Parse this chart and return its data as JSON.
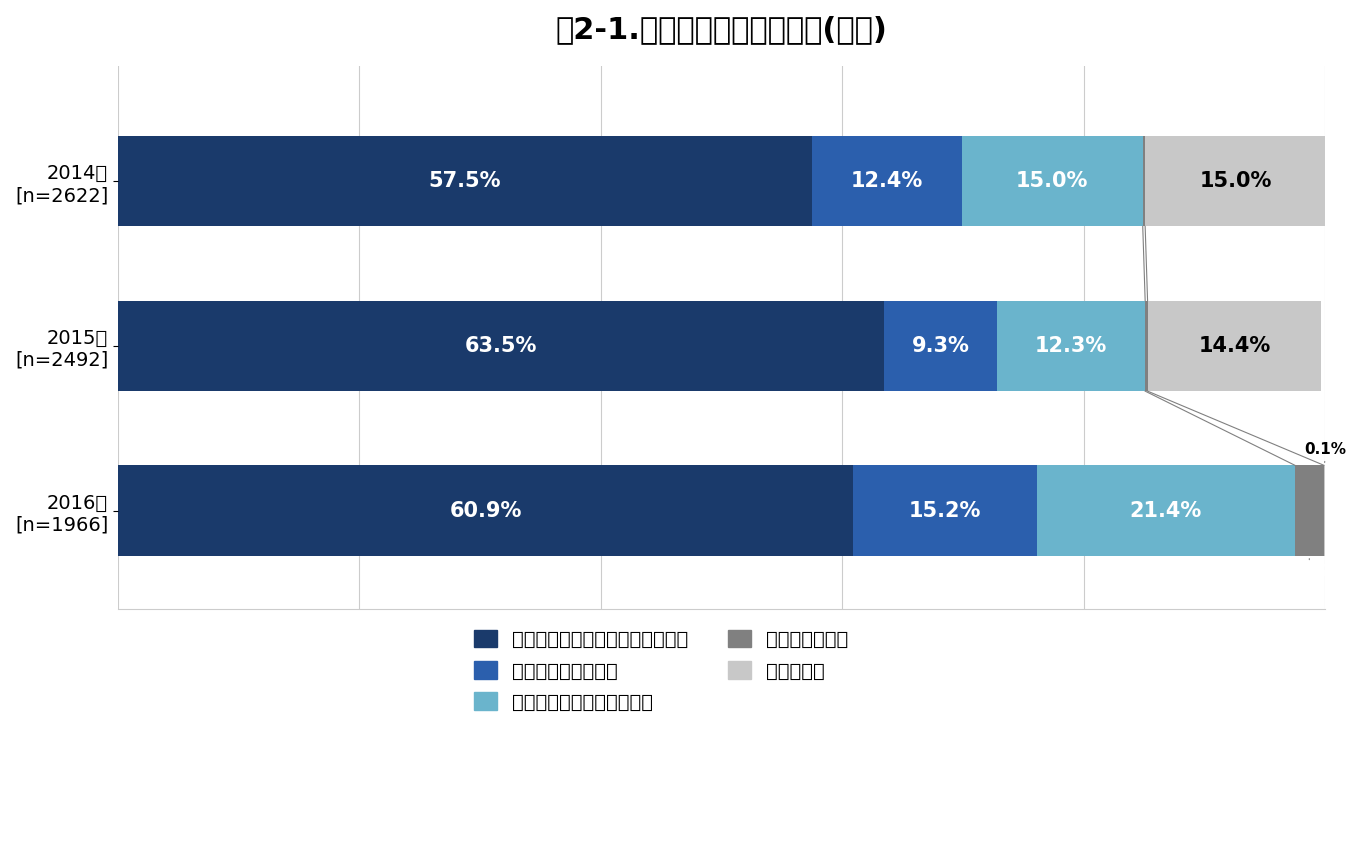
{
  "title": "図2-1.今の会社での勤続意向(男性)",
  "years": [
    "2014年\n[n=2622]",
    "2015年\n[n=2492]",
    "2016年\n[n=1966]"
  ],
  "categories": [
    "できれば今の会社で働き続けたい",
    "そのうち転職したい",
    "いつかは起業・独立したい",
    "家庭に入りたい",
    "わからない"
  ],
  "values": [
    [
      57.5,
      12.4,
      15.0,
      0.2,
      15.0
    ],
    [
      63.5,
      9.3,
      12.3,
      0.2,
      14.4
    ],
    [
      60.9,
      15.2,
      21.4,
      2.4,
      0.1
    ]
  ],
  "colors": [
    "#1a3a6b",
    "#2b5fad",
    "#6ab4cc",
    "#808080",
    "#c8c8c8"
  ],
  "text_colors_in_bar": [
    "white",
    "white",
    "white",
    "white",
    "black"
  ],
  "background_color": "#ffffff",
  "title_fontsize": 22,
  "bar_label_fontsize": 15,
  "legend_fontsize": 14,
  "ylabel_fontsize": 13
}
